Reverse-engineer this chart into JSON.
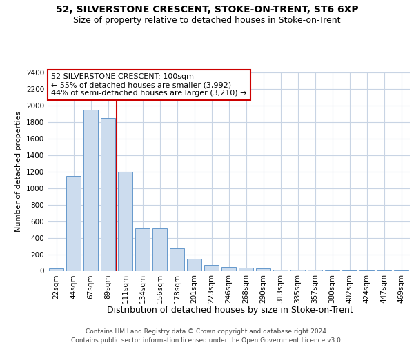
{
  "title1": "52, SILVERSTONE CRESCENT, STOKE-ON-TRENT, ST6 6XP",
  "title2": "Size of property relative to detached houses in Stoke-on-Trent",
  "xlabel": "Distribution of detached houses by size in Stoke-on-Trent",
  "ylabel": "Number of detached properties",
  "footer1": "Contains HM Land Registry data © Crown copyright and database right 2024.",
  "footer2": "Contains public sector information licensed under the Open Government Licence v3.0.",
  "annotation_line1": "52 SILVERSTONE CRESCENT: 100sqm",
  "annotation_line2": "← 55% of detached houses are smaller (3,992)",
  "annotation_line3": "44% of semi-detached houses are larger (3,210) →",
  "bar_color": "#ccdcee",
  "bar_edge_color": "#6699cc",
  "marker_color": "#cc0000",
  "annotation_box_color": "#ffffff",
  "annotation_box_edge": "#cc0000",
  "background_color": "#ffffff",
  "grid_color": "#c8d4e4",
  "categories": [
    "22sqm",
    "44sqm",
    "67sqm",
    "89sqm",
    "111sqm",
    "134sqm",
    "156sqm",
    "178sqm",
    "201sqm",
    "223sqm",
    "246sqm",
    "268sqm",
    "290sqm",
    "313sqm",
    "335sqm",
    "357sqm",
    "380sqm",
    "402sqm",
    "424sqm",
    "447sqm",
    "469sqm"
  ],
  "values": [
    30,
    1150,
    1950,
    1850,
    1200,
    510,
    510,
    270,
    150,
    70,
    50,
    40,
    30,
    15,
    12,
    10,
    8,
    6,
    5,
    4,
    3
  ],
  "property_bin_index": 3,
  "ylim": [
    0,
    2400
  ],
  "yticks": [
    0,
    200,
    400,
    600,
    800,
    1000,
    1200,
    1400,
    1600,
    1800,
    2000,
    2200,
    2400
  ],
  "title1_fontsize": 10,
  "title2_fontsize": 9,
  "xlabel_fontsize": 9,
  "ylabel_fontsize": 8,
  "tick_fontsize": 7.5,
  "annotation_fontsize": 8,
  "footer_fontsize": 6.5
}
